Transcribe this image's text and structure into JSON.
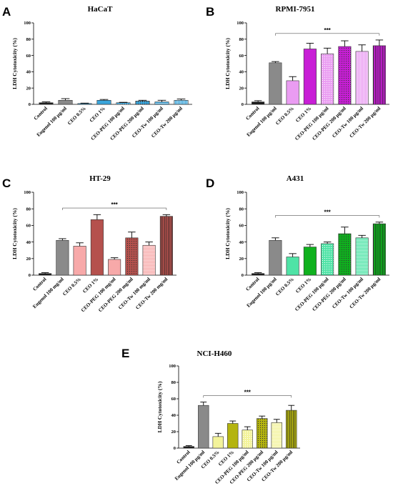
{
  "chart_data": [
    {
      "id": "A",
      "type": "bar",
      "panel_letter": "A",
      "title": "HaCaT",
      "ylabel": "LDH Cytotoxicity (%)",
      "ylim": [
        0,
        100
      ],
      "yticks": [
        0,
        20,
        40,
        60,
        80,
        100
      ],
      "significance": "",
      "categories": [
        "Control",
        "Eugenol 100 µg/ml",
        "CEO 0.5%",
        "CEO 1%",
        "CEO-PEG 100  µg/ml",
        "CEO-PEG 200 µg/ml",
        "CEO-Tw 100  µg/ml",
        "CEO-Tw 200 µg/ml"
      ],
      "values": [
        2,
        5,
        1,
        5,
        2,
        4,
        3,
        5
      ],
      "errors": [
        1,
        2,
        0.5,
        1,
        0.5,
        1,
        2,
        1.5
      ],
      "colors": [
        "#1a1a1a",
        "#8a8a8a",
        "#3aa5db",
        "#3aa5db",
        "#3aa5db",
        "#3aa5db",
        "#3aa5db",
        "#3aa5db"
      ],
      "patterns": [
        "solid",
        "solid",
        "light",
        "solid",
        "dots",
        "dots-dark",
        "hlines",
        "vlines"
      ]
    },
    {
      "id": "B",
      "type": "bar",
      "panel_letter": "B",
      "title": "RPMI-7951",
      "ylabel": "LDH Cytotoxicity (%)",
      "ylim": [
        0,
        100
      ],
      "yticks": [
        0,
        20,
        40,
        60,
        80,
        100
      ],
      "significance": "***",
      "categories": [
        "Control",
        "Eugenol 100 µg/ml",
        "CEO 0.5%",
        "CEO 1%",
        "CEO-PEG 100 µg/ml",
        "CEO-PEG 200 µg/ml",
        "CEO-Tw 100 µg/ml",
        "CEO-Tw 200 µg/ml"
      ],
      "values": [
        3,
        51,
        29,
        68,
        62,
        71,
        65,
        72
      ],
      "errors": [
        1.5,
        1.5,
        5,
        7,
        7,
        7,
        8,
        7
      ],
      "colors": [
        "#1a1a1a",
        "#8a8a8a",
        "#ea9cf2",
        "#c81ed6",
        "#ea9cf2",
        "#c81ed6",
        "#ea9cf2",
        "#c81ed6"
      ],
      "patterns": [
        "solid",
        "solid",
        "solid",
        "solid",
        "dots",
        "dots-dark",
        "vlines",
        "vlines-dark"
      ]
    },
    {
      "id": "C",
      "type": "bar",
      "panel_letter": "C",
      "title": "HT-29",
      "ylabel": "LDH Cytotoxicity (%)",
      "ylim": [
        0,
        100
      ],
      "yticks": [
        0,
        20,
        40,
        60,
        80,
        100
      ],
      "significance": "***",
      "categories": [
        "Control",
        "Eugenol 100 mg/ml",
        "CEO 0.5%",
        "CEO  1%",
        "CEO-PEG 100 mg/ml",
        "CEO-PEG 200 mg/ml",
        "CEO-Tw 100 mg/ml",
        "CEO-Tw 200 mg/ml"
      ],
      "values": [
        2,
        42,
        35,
        67,
        19,
        45,
        36,
        71
      ],
      "errors": [
        1,
        2,
        4,
        6,
        2,
        7,
        4,
        2
      ],
      "colors": [
        "#1a1a1a",
        "#8a8a8a",
        "#f7a9a9",
        "#b5514d",
        "#f7a9a9",
        "#b5514d",
        "#f7a9a9",
        "#b5514d"
      ],
      "patterns": [
        "solid",
        "solid",
        "solid",
        "solid",
        "solid",
        "dots-dark",
        "hlines",
        "vlines-dark"
      ]
    },
    {
      "id": "D",
      "type": "bar",
      "panel_letter": "D",
      "title": "A431",
      "ylabel": "LDH Cytotoxicity (%)",
      "ylim": [
        0,
        100
      ],
      "yticks": [
        0,
        20,
        40,
        60,
        80,
        100
      ],
      "significance": "***",
      "categories": [
        "Control",
        "Eugenol 100 µg/ml",
        "CEO 0.5%",
        "CEO 1%",
        "CEO-PEG 100 µg/ml",
        "CEO-PEG 200 µg/ml",
        "CEO-Tw 100 µg/ml",
        "CEO-Tw 200 µg/ml"
      ],
      "values": [
        2,
        42,
        22,
        34,
        38,
        50,
        45,
        62
      ],
      "errors": [
        1,
        3,
        4,
        3,
        2,
        8,
        3,
        2
      ],
      "colors": [
        "#1a1a1a",
        "#8a8a8a",
        "#4fe3a6",
        "#0fb11e",
        "#4fe3a6",
        "#0fb11e",
        "#4fe3a6",
        "#0fb11e"
      ],
      "patterns": [
        "solid",
        "solid",
        "solid",
        "solid",
        "dots",
        "dots-dark",
        "hlines",
        "vlines-dark"
      ]
    },
    {
      "id": "E",
      "type": "bar",
      "panel_letter": "E",
      "title": "NCI-H460",
      "ylabel": "LDH Cytotoxicity (%)",
      "ylim": [
        0,
        100
      ],
      "yticks": [
        0,
        20,
        40,
        60,
        80,
        100
      ],
      "significance": "***",
      "categories": [
        "Control",
        "Eugenol 100 µg/ml",
        "CEO 0.5%",
        "CEO 1%",
        "CEO-PEG 100 µg/ml",
        "CEO-PEG 200 µg/ml",
        "CEO-Tw 100 µg/ml",
        "CEO-Tw 200 µg/ml"
      ],
      "values": [
        2,
        52,
        14,
        30,
        22,
        36,
        31,
        46
      ],
      "errors": [
        1,
        4,
        4,
        3,
        4,
        3,
        4,
        6
      ],
      "colors": [
        "#1a1a1a",
        "#8a8a8a",
        "#f3f39a",
        "#b4b40f",
        "#f3f39a",
        "#b4b40f",
        "#f3f39a",
        "#b4b40f"
      ],
      "patterns": [
        "solid",
        "solid",
        "solid",
        "solid",
        "dots",
        "dots-dark",
        "hlines",
        "vlines-dark"
      ]
    }
  ]
}
